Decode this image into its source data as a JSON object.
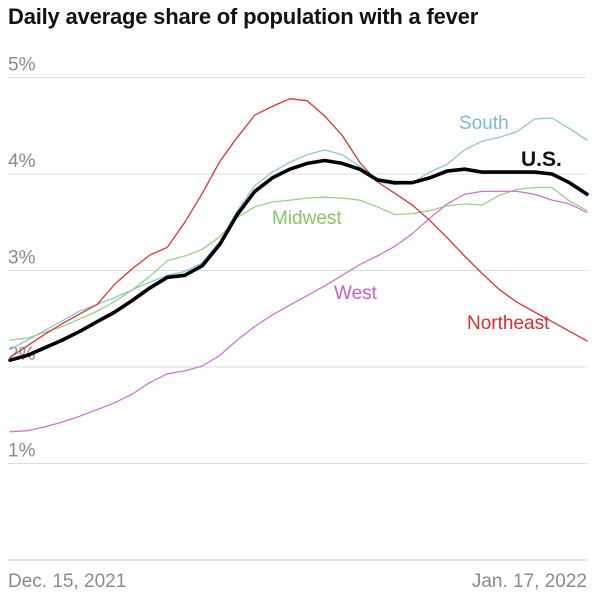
{
  "chart_data": {
    "type": "line",
    "title": "Daily average share of population with a fever",
    "x_start_label": "Dec. 15, 2021",
    "x_end_label": "Jan. 17, 2022",
    "x": [
      "2021-12-15",
      "2021-12-16",
      "2021-12-17",
      "2021-12-18",
      "2021-12-19",
      "2021-12-20",
      "2021-12-21",
      "2021-12-22",
      "2021-12-23",
      "2021-12-24",
      "2021-12-25",
      "2021-12-26",
      "2021-12-27",
      "2021-12-28",
      "2021-12-29",
      "2021-12-30",
      "2021-12-31",
      "2022-01-01",
      "2022-01-02",
      "2022-01-03",
      "2022-01-04",
      "2022-01-05",
      "2022-01-06",
      "2022-01-07",
      "2022-01-08",
      "2022-01-09",
      "2022-01-10",
      "2022-01-11",
      "2022-01-12",
      "2022-01-13",
      "2022-01-14",
      "2022-01-15",
      "2022-01-16",
      "2022-01-17"
    ],
    "y_ticks": [
      "1%",
      "2%",
      "3%",
      "4%",
      "5%"
    ],
    "ylim": [
      0,
      5
    ],
    "series": [
      {
        "name": "South",
        "color": "#8fc3e0",
        "width": 1.3,
        "values": [
          2.18,
          2.28,
          2.38,
          2.48,
          2.58,
          2.65,
          2.72,
          2.8,
          2.88,
          2.95,
          2.99,
          3.08,
          3.3,
          3.62,
          3.88,
          4.02,
          4.12,
          4.2,
          4.25,
          4.2,
          4.08,
          3.92,
          3.89,
          3.91,
          4.02,
          4.1,
          4.25,
          4.34,
          4.38,
          4.44,
          4.57,
          4.58,
          4.47,
          4.35
        ]
      },
      {
        "name": "Midwest",
        "color": "#9bd07c",
        "width": 1.3,
        "values": [
          2.28,
          2.3,
          2.36,
          2.42,
          2.5,
          2.58,
          2.68,
          2.8,
          2.94,
          3.1,
          3.15,
          3.22,
          3.35,
          3.55,
          3.66,
          3.71,
          3.73,
          3.75,
          3.76,
          3.75,
          3.73,
          3.66,
          3.58,
          3.59,
          3.62,
          3.67,
          3.69,
          3.68,
          3.78,
          3.84,
          3.86,
          3.86,
          3.72,
          3.62
        ]
      },
      {
        "name": "West",
        "color": "#cf74d9",
        "width": 1.3,
        "values": [
          1.33,
          1.34,
          1.38,
          1.43,
          1.49,
          1.56,
          1.63,
          1.72,
          1.84,
          1.93,
          1.96,
          2.01,
          2.12,
          2.28,
          2.42,
          2.54,
          2.64,
          2.74,
          2.84,
          2.95,
          3.06,
          3.15,
          3.25,
          3.38,
          3.54,
          3.69,
          3.79,
          3.82,
          3.82,
          3.82,
          3.79,
          3.73,
          3.69,
          3.6
        ]
      },
      {
        "name": "Northeast",
        "color": "#d93636",
        "width": 1.3,
        "values": [
          2.1,
          2.22,
          2.34,
          2.45,
          2.55,
          2.65,
          2.86,
          3.02,
          3.16,
          3.24,
          3.5,
          3.8,
          4.13,
          4.38,
          4.61,
          4.7,
          4.78,
          4.76,
          4.6,
          4.4,
          4.12,
          3.92,
          3.8,
          3.68,
          3.52,
          3.34,
          3.15,
          2.97,
          2.8,
          2.67,
          2.57,
          2.47,
          2.37,
          2.27
        ]
      },
      {
        "name": "U.S.",
        "color": "#000000",
        "width": 3.6,
        "values": [
          2.07,
          2.12,
          2.2,
          2.28,
          2.37,
          2.47,
          2.57,
          2.69,
          2.82,
          2.93,
          2.95,
          3.05,
          3.27,
          3.58,
          3.82,
          3.96,
          4.05,
          4.11,
          4.14,
          4.11,
          4.05,
          3.94,
          3.91,
          3.91,
          3.96,
          4.03,
          4.05,
          4.02,
          4.02,
          4.02,
          4.02,
          4.0,
          3.91,
          3.79
        ]
      }
    ],
    "series_labels": [
      "South",
      "Midwest",
      "West",
      "Northeast",
      "U.S."
    ],
    "grid": true,
    "legend": "direct labels on lines"
  }
}
